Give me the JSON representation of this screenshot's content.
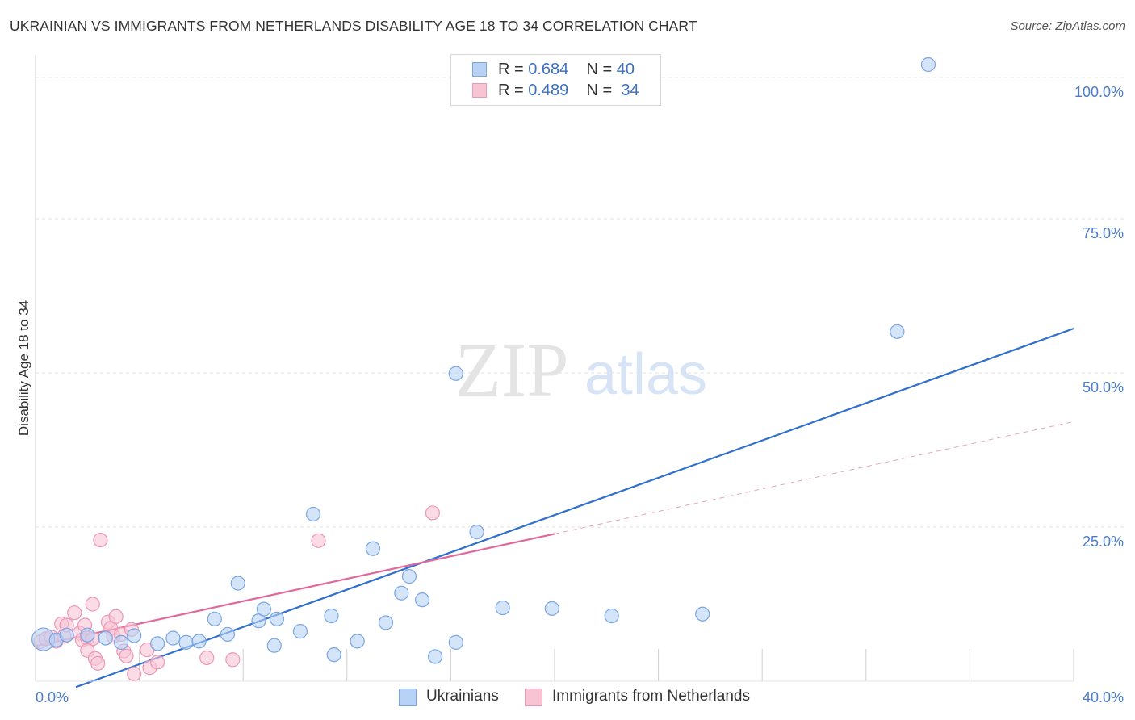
{
  "header": {
    "title": "UKRAINIAN VS IMMIGRANTS FROM NETHERLANDS DISABILITY AGE 18 TO 34 CORRELATION CHART",
    "source": "Source: ZipAtlas.com"
  },
  "watermark": {
    "zip": "ZIP",
    "atlas": "atlas"
  },
  "legend": {
    "rows": [
      {
        "r_label": "R =",
        "r_value": "0.684",
        "n_label": "N =",
        "n_value": "40"
      },
      {
        "r_label": "R =",
        "r_value": "0.489",
        "n_label": "N =",
        "n_value": "34"
      }
    ]
  },
  "bottom_legend": {
    "ukrainians": "Ukrainians",
    "netherlands": "Immigrants from Netherlands"
  },
  "colors": {
    "blue_fill": "#b8d2f5",
    "blue_stroke": "#7aa6e3",
    "blue_line": "#2f6fd0",
    "pink_fill": "#f8c3d3",
    "pink_stroke": "#ec98b4",
    "pink_line": "#e0689a",
    "accent_text": "#4a7cc7",
    "grid": "#e0e0e0"
  },
  "chart_data": {
    "type": "scatter",
    "title": "UKRAINIAN VS IMMIGRANTS FROM NETHERLANDS DISABILITY AGE 18 TO 34 CORRELATION CHART",
    "xlabel": "",
    "ylabel": "Disability Age 18 to 34",
    "xlim": [
      0,
      40
    ],
    "ylim": [
      0,
      100
    ],
    "x_tick_labels": [
      "0.0%",
      "40.0%"
    ],
    "y_tick_labels": [
      "100.0%",
      "75.0%",
      "50.0%",
      "25.0%"
    ],
    "y_ticks": [
      100,
      75,
      50,
      25
    ],
    "grid": true,
    "legend_position": "top-center",
    "series": [
      {
        "name": "Ukrainians",
        "r": 0.684,
        "n": 40,
        "trend": {
          "x": [
            0,
            40
          ],
          "y": [
            -3.3,
            57.2
          ],
          "style": "solid"
        },
        "points": [
          {
            "x": 0.3,
            "y": 6.8,
            "big": true
          },
          {
            "x": 0.8,
            "y": 6.7
          },
          {
            "x": 1.2,
            "y": 7.5
          },
          {
            "x": 2.0,
            "y": 7.5
          },
          {
            "x": 2.7,
            "y": 7.0
          },
          {
            "x": 3.3,
            "y": 6.3
          },
          {
            "x": 3.8,
            "y": 7.4
          },
          {
            "x": 4.7,
            "y": 6.1
          },
          {
            "x": 5.3,
            "y": 7.0
          },
          {
            "x": 5.8,
            "y": 6.3
          },
          {
            "x": 6.3,
            "y": 6.5
          },
          {
            "x": 6.9,
            "y": 10.1
          },
          {
            "x": 7.4,
            "y": 7.6
          },
          {
            "x": 7.8,
            "y": 15.9
          },
          {
            "x": 8.6,
            "y": 9.8
          },
          {
            "x": 8.8,
            "y": 11.7
          },
          {
            "x": 9.3,
            "y": 10.1
          },
          {
            "x": 9.2,
            "y": 5.8
          },
          {
            "x": 10.2,
            "y": 8.1
          },
          {
            "x": 10.7,
            "y": 27.1
          },
          {
            "x": 11.4,
            "y": 10.6
          },
          {
            "x": 11.5,
            "y": 4.3
          },
          {
            "x": 12.4,
            "y": 6.5
          },
          {
            "x": 13.0,
            "y": 21.5
          },
          {
            "x": 13.5,
            "y": 9.5
          },
          {
            "x": 14.1,
            "y": 14.3
          },
          {
            "x": 14.4,
            "y": 17.0
          },
          {
            "x": 14.9,
            "y": 13.2
          },
          {
            "x": 15.4,
            "y": 4.0
          },
          {
            "x": 16.2,
            "y": 49.9
          },
          {
            "x": 16.2,
            "y": 6.3
          },
          {
            "x": 17.0,
            "y": 24.2
          },
          {
            "x": 18.0,
            "y": 11.9
          },
          {
            "x": 19.9,
            "y": 11.8
          },
          {
            "x": 22.2,
            "y": 10.6
          },
          {
            "x": 25.7,
            "y": 10.9
          },
          {
            "x": 33.2,
            "y": 56.7
          },
          {
            "x": 34.4,
            "y": 100.0
          }
        ]
      },
      {
        "name": "Immigrants from Netherlands",
        "r": 0.489,
        "n": 34,
        "trend": {
          "x": [
            0,
            20
          ],
          "y": [
            5.7,
            23.9
          ],
          "style": "solid",
          "extension": {
            "x": [
              20,
              40
            ],
            "y": [
              23.9,
              42.1
            ],
            "style": "dashed"
          }
        },
        "points": [
          {
            "x": 0.2,
            "y": 6.4
          },
          {
            "x": 0.4,
            "y": 6.9
          },
          {
            "x": 0.6,
            "y": 7.2
          },
          {
            "x": 0.8,
            "y": 6.5
          },
          {
            "x": 1.0,
            "y": 9.3
          },
          {
            "x": 1.1,
            "y": 7.3
          },
          {
            "x": 1.2,
            "y": 9.1
          },
          {
            "x": 1.5,
            "y": 11.1
          },
          {
            "x": 1.7,
            "y": 7.8
          },
          {
            "x": 1.8,
            "y": 6.7
          },
          {
            "x": 1.9,
            "y": 9.1
          },
          {
            "x": 2.0,
            "y": 7.0
          },
          {
            "x": 2.2,
            "y": 12.5
          },
          {
            "x": 2.2,
            "y": 6.9
          },
          {
            "x": 2.0,
            "y": 5.0
          },
          {
            "x": 2.3,
            "y": 3.7
          },
          {
            "x": 2.4,
            "y": 2.9
          },
          {
            "x": 2.5,
            "y": 22.9
          },
          {
            "x": 2.8,
            "y": 9.6
          },
          {
            "x": 2.9,
            "y": 8.6
          },
          {
            "x": 3.0,
            "y": 7.3
          },
          {
            "x": 3.1,
            "y": 10.5
          },
          {
            "x": 3.3,
            "y": 7.6
          },
          {
            "x": 3.4,
            "y": 4.9
          },
          {
            "x": 3.5,
            "y": 4.1
          },
          {
            "x": 3.7,
            "y": 8.4
          },
          {
            "x": 3.8,
            "y": 1.2
          },
          {
            "x": 4.3,
            "y": 5.1
          },
          {
            "x": 4.4,
            "y": 2.2
          },
          {
            "x": 4.7,
            "y": 3.1
          },
          {
            "x": 6.6,
            "y": 3.8
          },
          {
            "x": 7.6,
            "y": 3.5
          },
          {
            "x": 10.9,
            "y": 22.8
          },
          {
            "x": 15.3,
            "y": 27.3
          }
        ]
      }
    ]
  }
}
